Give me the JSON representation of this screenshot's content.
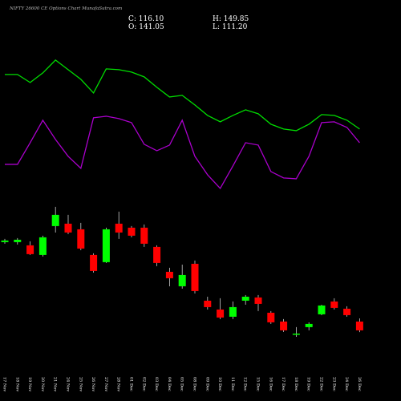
{
  "chart_data": {
    "type": "candlestick",
    "title": "NIFTY 26600 CE Options Chart MunafaSutra.com",
    "header": [
      "C: 116.10",
      "H: 149.85",
      "O: 141.05",
      "L: 111.20"
    ],
    "x": [
      "17 Nov",
      "18 Nov",
      "19 Nov",
      "20 Nov",
      "21 Nov",
      "24 Nov",
      "25 Nov",
      "26 Nov",
      "27 Nov",
      "28 Nov",
      "01 Dec",
      "02 Dec",
      "03 Dec",
      "04 Dec",
      "05 Dec",
      "08 Dec",
      "09 Dec",
      "10 Dec",
      "11 Dec",
      "12 Dec",
      "15 Dec",
      "16 Dec",
      "17 Dec",
      "18 Dec",
      "19 Dec",
      "22 Dec",
      "23 Dec",
      "24 Dec",
      "26 Dec"
    ],
    "open": [
      365.8,
      365.8,
      356.7,
      329.5,
      411.2,
      418.0,
      402.1,
      329.5,
      309.1,
      418.0,
      406.7,
      406.7,
      352.2,
      281.8,
      240.9,
      304.5,
      200.1,
      175.1,
      154.7,
      200.1,
      209.2,
      166.0,
      141.1,
      105.9,
      125.2,
      161.5,
      197.8,
      177.4,
      141.05
    ],
    "high": [
      374.9,
      377.2,
      368.1,
      384.0,
      465.7,
      443.0,
      420.3,
      334.0,
      406.7,
      452.1,
      411.2,
      415.7,
      356.7,
      293.2,
      302.2,
      313.6,
      211.4,
      206.9,
      197.8,
      216.0,
      216.0,
      170.6,
      147.9,
      125.2,
      138.8,
      188.7,
      206.9,
      184.2,
      149.85
    ],
    "low": [
      361.3,
      359.0,
      329.5,
      325.0,
      393.0,
      388.5,
      343.1,
      279.5,
      306.8,
      374.9,
      379.4,
      352.2,
      297.7,
      240.9,
      234.1,
      220.5,
      175.1,
      147.9,
      147.9,
      188.7,
      170.6,
      134.3,
      111.6,
      97.9,
      116.1,
      159.2,
      175.1,
      154.7,
      111.2
    ],
    "close": [
      370.4,
      372.6,
      331.8,
      379.4,
      443.0,
      393.0,
      347.6,
      284.1,
      402.1,
      393.0,
      384.0,
      361.3,
      306.8,
      263.6,
      272.7,
      227.3,
      181.9,
      152.4,
      181.9,
      211.4,
      191.0,
      138.8,
      116.1,
      107.0,
      134.3,
      186.5,
      179.7,
      159.2,
      116.1
    ],
    "up_color": "#00ff00",
    "down_color": "#ff0000",
    "lines": [
      {
        "color": "#00dd00",
        "values": [
          840.2,
          840.2,
          817.5,
          844.7,
          881.1,
          853.8,
          826.6,
          788.0,
          856.1,
          853.8,
          847.0,
          833.4,
          803.9,
          776.6,
          781.2,
          753.9,
          724.4,
          706.3,
          724.4,
          740.3,
          729.0,
          699.4,
          685.9,
          681.3,
          699.4,
          726.7,
          724.4,
          710.8,
          685.9
        ]
      },
      {
        "color": "#aa00cc",
        "values": [
          585.9,
          585.9,
          647.2,
          710.8,
          656.3,
          608.6,
          574.6,
          717.6,
          722.1,
          715.3,
          704.0,
          642.7,
          624.5,
          640.4,
          710.8,
          608.6,
          556.4,
          517.9,
          581.4,
          647.2,
          640.4,
          565.5,
          547.4,
          545.1,
          608.6,
          704.0,
          706.3,
          690.4,
          647.2
        ]
      }
    ],
    "ylim": [
      7,
      1051
    ]
  }
}
